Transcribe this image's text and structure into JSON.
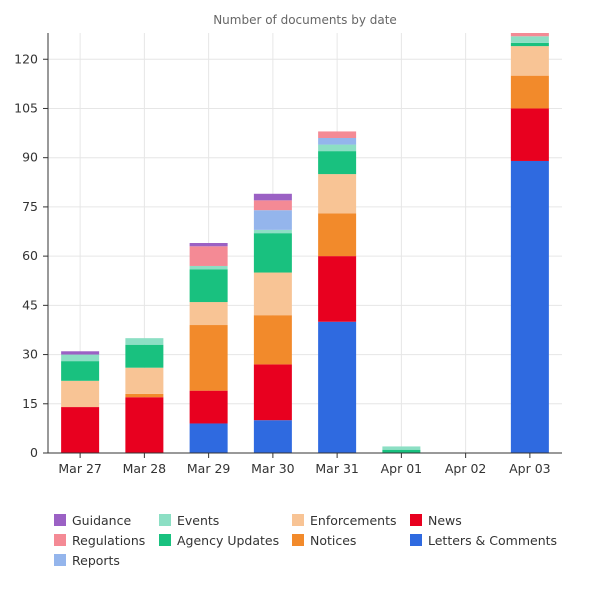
{
  "chart_data": {
    "type": "bar",
    "stacked": true,
    "title": "Number of documents by date",
    "xlabel": "",
    "ylabel": "",
    "ylim": [
      0,
      128
    ],
    "yticks": [
      0,
      15,
      30,
      45,
      60,
      75,
      90,
      105,
      120
    ],
    "categories": [
      "Mar 27",
      "Mar 28",
      "Mar 29",
      "Mar 30",
      "Mar 31",
      "Apr 01",
      "Apr 02",
      "Apr 03"
    ],
    "series": [
      {
        "name": "Letters & Comments",
        "color": "#2f6ae0",
        "values": [
          0,
          0,
          9,
          10,
          40,
          0,
          0,
          89
        ]
      },
      {
        "name": "News",
        "color": "#e8001f",
        "values": [
          14,
          17,
          10,
          17,
          20,
          0,
          0,
          16
        ]
      },
      {
        "name": "Notices",
        "color": "#f28a2b",
        "values": [
          0,
          1,
          20,
          15,
          13,
          0,
          0,
          10
        ]
      },
      {
        "name": "Enforcements",
        "color": "#f8c495",
        "values": [
          8,
          8,
          7,
          13,
          12,
          0,
          0,
          9
        ]
      },
      {
        "name": "Agency Updates",
        "color": "#19c17f",
        "values": [
          6,
          7,
          10,
          12,
          7,
          1,
          0,
          1
        ]
      },
      {
        "name": "Events",
        "color": "#8cdfc4",
        "values": [
          2,
          2,
          1,
          1,
          2,
          1,
          0,
          2
        ]
      },
      {
        "name": "Reports",
        "color": "#94b5ec",
        "values": [
          0,
          0,
          0,
          6,
          2,
          0,
          0,
          0
        ]
      },
      {
        "name": "Regulations",
        "color": "#f48a95",
        "values": [
          0,
          0,
          6,
          3,
          2,
          0,
          0,
          1
        ]
      },
      {
        "name": "Guidance",
        "color": "#9b61c4",
        "values": [
          1,
          0,
          1,
          2,
          0,
          0,
          0,
          0
        ]
      }
    ],
    "legend": {
      "placement": "bottom",
      "rows": [
        [
          "Guidance",
          "Events",
          "Enforcements",
          "News"
        ],
        [
          "Regulations",
          "Agency Updates",
          "Notices",
          "Letters & Comments"
        ],
        [
          "Reports"
        ]
      ]
    },
    "grid": true
  }
}
